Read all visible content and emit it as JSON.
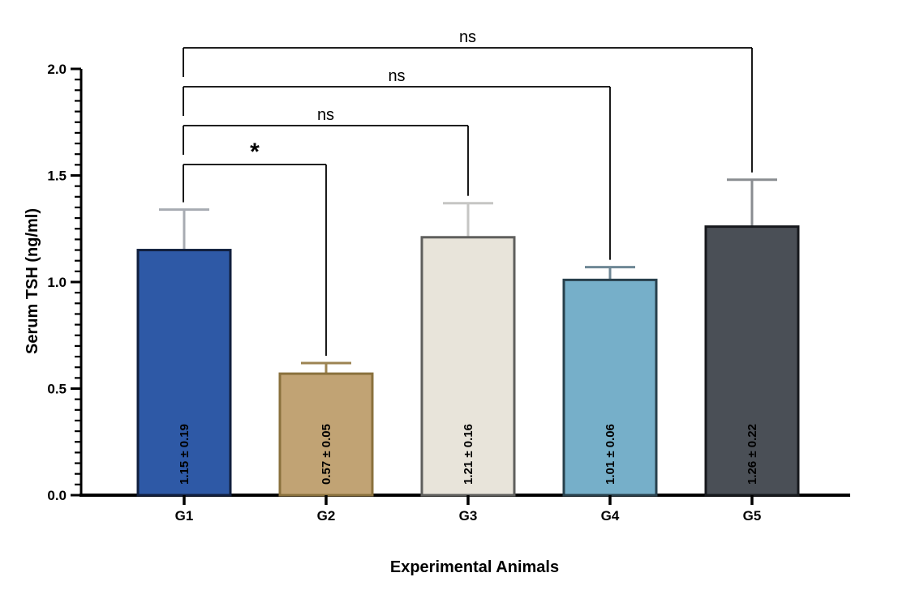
{
  "figure": {
    "background": "#ffffff",
    "axis_color": "#000000",
    "text_color": "#000000"
  },
  "chart_data": {
    "type": "bar",
    "title": "",
    "xlabel": "Experimental Animals",
    "ylabel": "Serum TSH (ng/ml)",
    "ylim": [
      0,
      2.0
    ],
    "ymajor_step": 0.5,
    "yminor_step": 0.05,
    "ytick_labels": [
      "0.0",
      "0.5",
      "1.0",
      "1.5",
      "2.0"
    ],
    "grid": false,
    "legend_position": "none",
    "error_bar_style": "sd-upper-with-cap",
    "categories": [
      "G1",
      "G2",
      "G3",
      "G4",
      "G5"
    ],
    "bars": [
      {
        "category": "G1",
        "mean": 1.15,
        "sd": 0.19,
        "display": "1.15 ± 0.19",
        "fill": "#2E59A6",
        "border": "#111F3E",
        "error_color": "#A7ABB2"
      },
      {
        "category": "G2",
        "mean": 0.57,
        "sd": 0.05,
        "display": "0.57 ± 0.05",
        "fill": "#C1A374",
        "border": "#8A713D",
        "error_color": "#9C8452"
      },
      {
        "category": "G3",
        "mean": 1.21,
        "sd": 0.16,
        "display": "1.21 ± 0.16",
        "fill": "#E8E4DA",
        "border": "#5F5F5D",
        "error_color": "#C6C6C4"
      },
      {
        "category": "G4",
        "mean": 1.01,
        "sd": 0.06,
        "display": "1.01 ± 0.06",
        "fill": "#76AFC9",
        "border": "#28404C",
        "error_color": "#6E8795"
      },
      {
        "category": "G5",
        "mean": 1.26,
        "sd": 0.22,
        "display": "1.26 ± 0.22",
        "fill": "#4A4F56",
        "border": "#17191D",
        "error_color": "#8A8D91"
      }
    ],
    "comparisons": [
      {
        "from": "G1",
        "to": "G2",
        "label": "*"
      },
      {
        "from": "G1",
        "to": "G3",
        "label": "ns"
      },
      {
        "from": "G1",
        "to": "G4",
        "label": "ns"
      },
      {
        "from": "G1",
        "to": "G5",
        "label": "ns"
      }
    ]
  }
}
